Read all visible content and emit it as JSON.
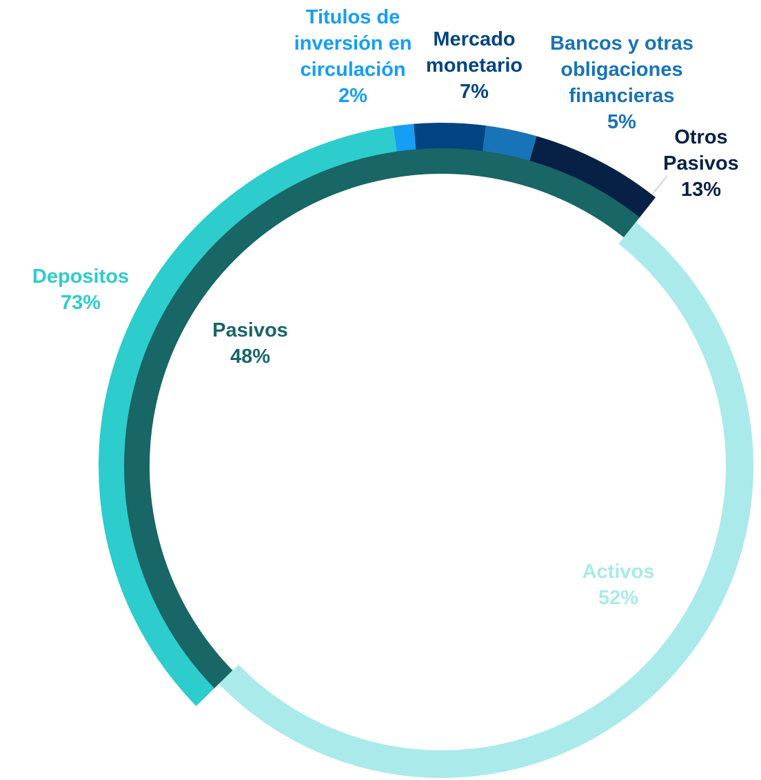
{
  "chart_data": {
    "type": "sunburst",
    "inner": {
      "categories": [
        "Pasivos",
        "Activos"
      ],
      "values": [
        48,
        52
      ],
      "value_labels": [
        "48%",
        "52%"
      ],
      "colors": [
        "#186666",
        "#aaeaea"
      ]
    },
    "outer": {
      "categories": [
        "Depositos",
        "Titulos de inversión en circulación",
        "Mercado monetario",
        "Bancos y otras obligaciones financieras",
        "Otros Pasivos"
      ],
      "values": [
        73,
        2,
        7,
        5,
        13
      ],
      "value_labels": [
        "73%",
        "2%",
        "7%",
        "5%",
        "13%"
      ],
      "colors": [
        "#2dcccd",
        "#149ef6",
        "#004481",
        "#1973b8",
        "#072146"
      ]
    }
  }
}
